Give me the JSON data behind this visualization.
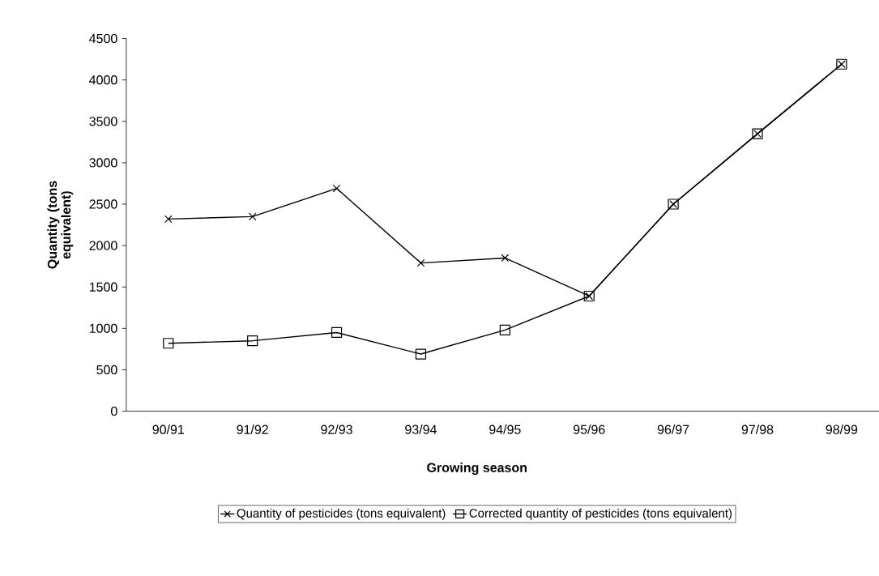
{
  "chart_data": {
    "type": "line",
    "xlabel": "Growing season",
    "ylabel": "Quantity (tons equivalent)",
    "categories": [
      "90/91",
      "91/92",
      "92/93",
      "93/94",
      "94/95",
      "95/96",
      "96/97",
      "97/98",
      "98/99"
    ],
    "series": [
      {
        "name": "Quantity of pesticides (tons equivalent)",
        "color": "#000000",
        "marker": "cross",
        "values": [
          2320,
          2350,
          2690,
          1790,
          1850,
          1390,
          2500,
          3350,
          4190
        ]
      },
      {
        "name": "Corrected quantity of pesticides (tons equivalent)",
        "color": "#000000",
        "marker": "square",
        "values": [
          820,
          850,
          950,
          690,
          980,
          1390,
          2500,
          3350,
          4190
        ]
      }
    ],
    "ylim": [
      0,
      4500
    ],
    "yticks": [
      0,
      500,
      1000,
      1500,
      2000,
      2500,
      3000,
      3500,
      4000,
      4500
    ],
    "grid": false,
    "legend": "bottom",
    "line_style": "solid"
  }
}
